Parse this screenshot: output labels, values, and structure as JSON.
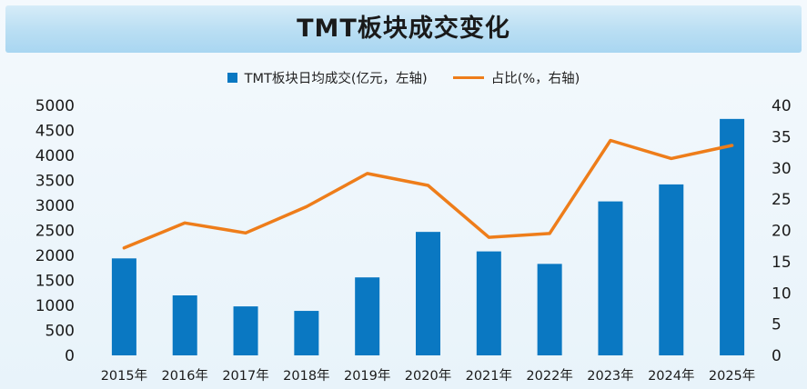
{
  "title": "TMT板块成交变化",
  "legend": {
    "bar_label": "TMT板块日均成交(亿元，左轴)",
    "line_label": "占比(%，右轴)"
  },
  "colors": {
    "bar": "#0a78c2",
    "line": "#ee7d1a",
    "title_bg": "#b9def3"
  },
  "chart_data": {
    "type": "bar",
    "categories": [
      "2015年",
      "2016年",
      "2017年",
      "2018年",
      "2019年",
      "2020年",
      "2021年",
      "2022年",
      "2023年",
      "2024年",
      "2025年"
    ],
    "series": [
      {
        "name": "TMT板块日均成交(亿元，左轴)",
        "type": "bar",
        "axis": "left",
        "values": [
          1940,
          1200,
          980,
          890,
          1560,
          2470,
          2080,
          1830,
          3080,
          3420,
          4730
        ]
      },
      {
        "name": "占比(%，右轴)",
        "type": "line",
        "axis": "right",
        "values": [
          17.2,
          21.2,
          19.6,
          23.8,
          29.1,
          27.2,
          18.9,
          19.5,
          34.4,
          31.5,
          33.6
        ]
      }
    ],
    "y_left": {
      "range": [
        0,
        5000
      ],
      "ticks": [
        "0",
        "500",
        "1000",
        "1500",
        "2000",
        "2500",
        "3000",
        "3500",
        "4000",
        "4500",
        "5000"
      ]
    },
    "y_right": {
      "range": [
        0,
        40
      ],
      "ticks": [
        "0",
        "5",
        "10",
        "15",
        "20",
        "25",
        "30",
        "35",
        "40"
      ]
    },
    "legend_position": "top-center",
    "grid": false
  }
}
